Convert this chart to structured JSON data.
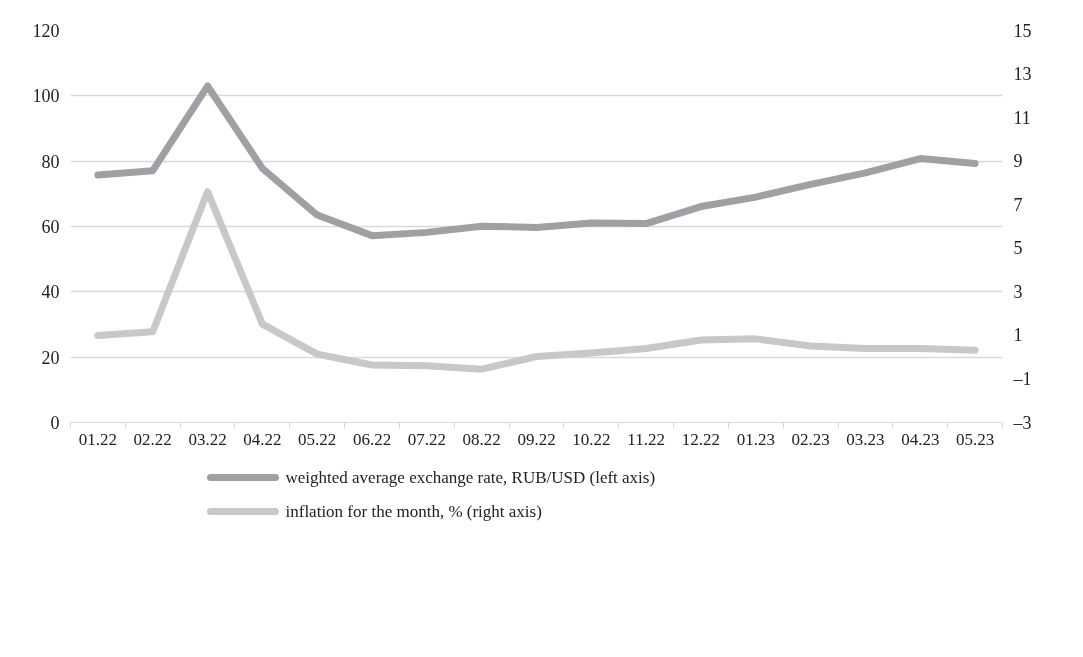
{
  "chart_data": {
    "type": "line",
    "categories": [
      "01.22",
      "02.22",
      "03.22",
      "04.22",
      "05.22",
      "06.22",
      "07.22",
      "08.22",
      "09.22",
      "10.22",
      "11.22",
      "12.22",
      "01.23",
      "02.23",
      "03.23",
      "04.23",
      "05.23"
    ],
    "series": [
      {
        "name": "weighted average exchange rate, RUB/USD (left axis)",
        "color": "#a0a0a4",
        "values": [
          75.8,
          77.1,
          103,
          77.8,
          63.5,
          57.2,
          58.2,
          60.1,
          59.7,
          61.1,
          60.9,
          66.1,
          69.0,
          72.9,
          76.4,
          80.8,
          79.3
        ]
      },
      {
        "name": "inflation for the month, % (right axis)",
        "color": "#c8c8ca",
        "axis": "y2",
        "values": [
          0.99,
          1.17,
          7.6,
          1.52,
          0.14,
          -0.36,
          -0.39,
          -0.55,
          0.03,
          0.19,
          0.4,
          0.79,
          0.84,
          0.51,
          0.4,
          0.4,
          0.32
        ]
      }
    ],
    "ylim": [
      0,
      120
    ],
    "yticks": [
      0,
      20,
      40,
      60,
      80,
      100,
      120
    ],
    "y2lim": [
      -3,
      15
    ],
    "y2ticks": [
      {
        "value": -3,
        "label": "–3"
      },
      {
        "value": -1,
        "label": "–1"
      },
      1,
      3,
      5,
      7,
      9,
      11,
      13,
      15
    ],
    "grid": "y",
    "legend": "bottom",
    "marker": "none",
    "line_style": "solid"
  }
}
